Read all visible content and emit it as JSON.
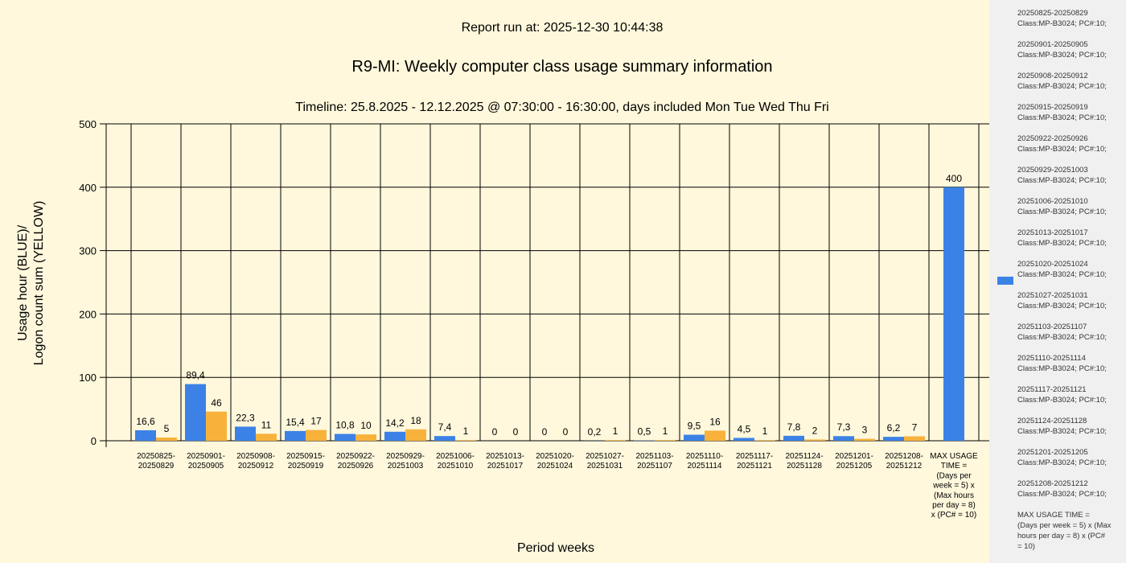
{
  "header": {
    "report_run": "Report run at: 2025-12-30 10:44:38",
    "title": "R9-MI: Weekly computer class usage summary information",
    "timeline": "Timeline:  25.8.2025  - 12.12.2025  @  07:30:00 -  16:30:00, days included Mon Tue Wed Thu Fri"
  },
  "colors": {
    "usage": "#3c82e6",
    "logon": "#f8b23c",
    "background": "#fff8dc",
    "legend_bg": "#f0f0f0"
  },
  "chart_data": {
    "type": "bar",
    "title": "R9-MI: Weekly computer class usage summary information",
    "xlabel": "Period weeks",
    "ylabel_line1": "Usage hour (BLUE)/",
    "ylabel_line2": "Logon count sum (YELLOW)",
    "ylim": [
      0,
      500
    ],
    "yticks": [
      "0",
      "100",
      "200",
      "300",
      "400",
      "500"
    ],
    "grid": true,
    "legend_position": "right",
    "categories": [
      [
        "20250825-",
        "20250829"
      ],
      [
        "20250901-",
        "20250905"
      ],
      [
        "20250908-",
        "20250912"
      ],
      [
        "20250915-",
        "20250919"
      ],
      [
        "20250922-",
        "20250926"
      ],
      [
        "20250929-",
        "20251003"
      ],
      [
        "20251006-",
        "20251010"
      ],
      [
        "20251013-",
        "20251017"
      ],
      [
        "20251020-",
        "20251024"
      ],
      [
        "20251027-",
        "20251031"
      ],
      [
        "20251103-",
        "20251107"
      ],
      [
        "20251110-",
        "20251114"
      ],
      [
        "20251117-",
        "20251121"
      ],
      [
        "20251124-",
        "20251128"
      ],
      [
        "20251201-",
        "20251205"
      ],
      [
        "20251208-",
        "20251212"
      ],
      [
        "MAX USAGE",
        "TIME =",
        "(Days per",
        "week = 5) x",
        "(Max hours",
        "per day = 8)",
        "x (PC# = 10)"
      ]
    ],
    "series": [
      {
        "color": "blue",
        "values": [
          16.6,
          89.4,
          22.3,
          15.4,
          10.8,
          14.2,
          7.4,
          0,
          0,
          0.2,
          0.5,
          9.5,
          4.5,
          7.8,
          7.3,
          6.2,
          400
        ],
        "labels": [
          "16,6",
          "89,4",
          "22,3",
          "15,4",
          "10,8",
          "14,2",
          "7,4",
          "0",
          "0",
          "0,2",
          "0,5",
          "9,5",
          "4,5",
          "7,8",
          "7,3",
          "6,2",
          "400"
        ]
      },
      {
        "color": "yellow",
        "values": [
          5,
          46,
          11,
          17,
          10,
          18,
          1,
          0,
          0,
          1,
          1,
          16,
          1,
          2,
          3,
          7,
          null
        ],
        "labels": [
          "5",
          "46",
          "11",
          "17",
          "10",
          "18",
          "1",
          "0",
          "0",
          "1",
          "1",
          "16",
          "1",
          "2",
          "3",
          "7",
          null
        ]
      }
    ]
  },
  "legend": {
    "items": [
      "20250825-20250829\nClass:MP-B3024; PC#:10;",
      "20250901-20250905\nClass:MP-B3024; PC#:10;",
      "20250908-20250912\nClass:MP-B3024; PC#:10;",
      "20250915-20250919\nClass:MP-B3024; PC#:10;",
      "20250922-20250926\nClass:MP-B3024; PC#:10;",
      "20250929-20251003\nClass:MP-B3024; PC#:10;",
      "20251006-20251010\nClass:MP-B3024; PC#:10;",
      "20251013-20251017\nClass:MP-B3024; PC#:10;",
      "20251020-20251024\nClass:MP-B3024; PC#:10;",
      "20251027-20251031\nClass:MP-B3024; PC#:10;",
      "20251103-20251107\nClass:MP-B3024; PC#:10;",
      "20251110-20251114\nClass:MP-B3024; PC#:10;",
      "20251117-20251121\nClass:MP-B3024; PC#:10;",
      "20251124-20251128\nClass:MP-B3024; PC#:10;",
      "20251201-20251205\nClass:MP-B3024; PC#:10;",
      "20251208-20251212\nClass:MP-B3024; PC#:10;",
      "MAX USAGE TIME =\n (Days per week = 5) x (Max\nhours per day = 8) x (PC#\n= 10)"
    ]
  }
}
